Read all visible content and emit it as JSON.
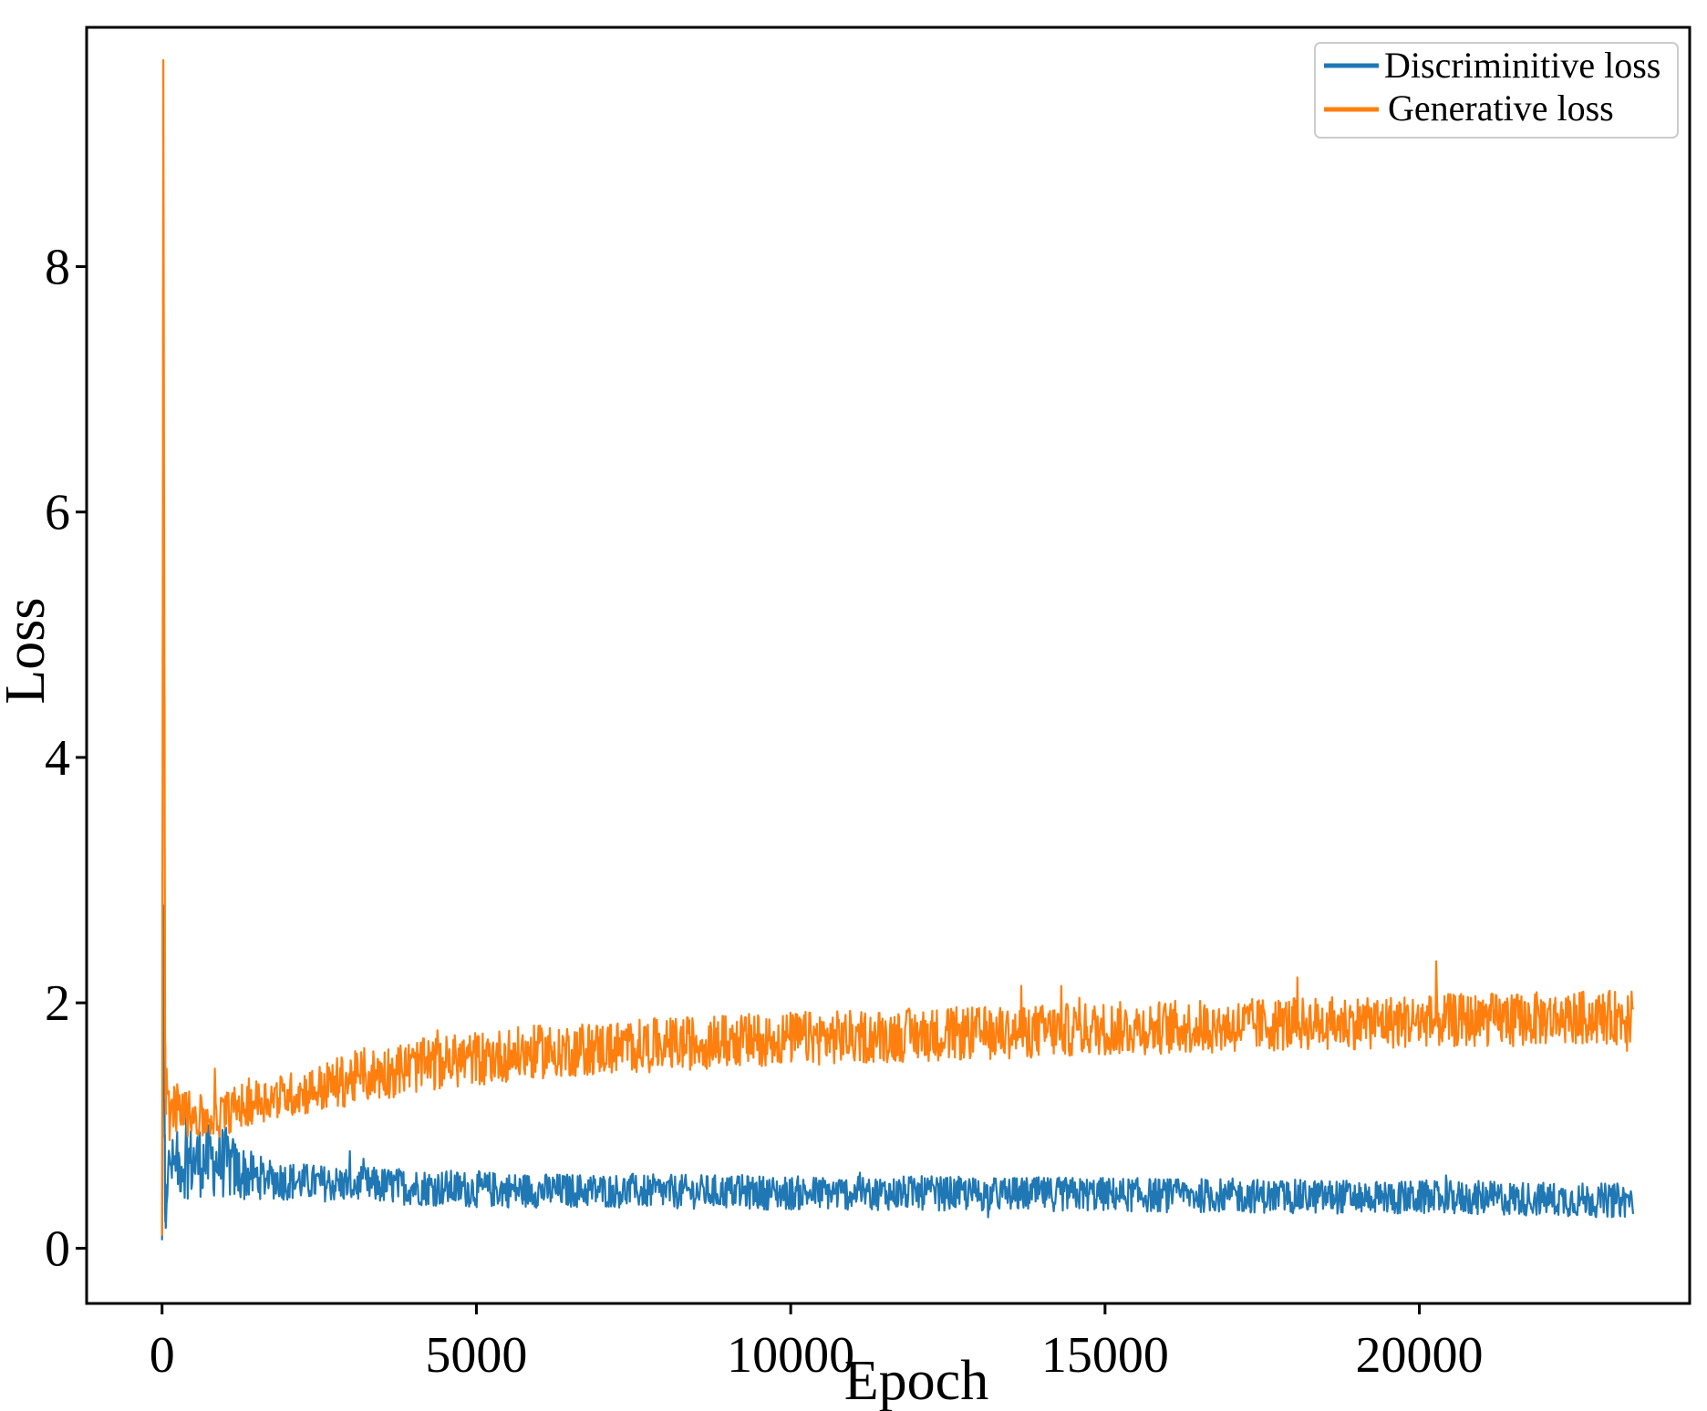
{
  "chart_data": {
    "type": "line",
    "title": "",
    "xlabel": "Epoch",
    "ylabel": "Loss",
    "xlim": [
      -1200,
      24300
    ],
    "ylim": [
      -0.45,
      9.95
    ],
    "xticks": [
      0,
      5000,
      10000,
      15000,
      20000
    ],
    "yticks": [
      0,
      2,
      4,
      6,
      8
    ],
    "xtick_labels": [
      "0",
      "5000",
      "10000",
      "15000",
      "20000"
    ],
    "ytick_labels": [
      "0",
      "2",
      "4",
      "6",
      "8"
    ],
    "grid": false,
    "legend": {
      "position": "top-right"
    },
    "series": [
      {
        "name": "Discriminitive loss",
        "color": "#1f77b4",
        "x": [
          0,
          20,
          50,
          100,
          200,
          400,
          700,
          1000,
          1200,
          1500,
          2000,
          2500,
          3000,
          4000,
          5000,
          6000,
          7000,
          8000,
          9000,
          10000,
          11000,
          12000,
          13000,
          14000,
          15000,
          16000,
          17000,
          18000,
          19000,
          20000,
          21000,
          22000,
          23000,
          23400
        ],
        "mean": [
          0.05,
          2.8,
          0.3,
          0.65,
          0.68,
          0.7,
          0.72,
          0.7,
          0.62,
          0.58,
          0.55,
          0.53,
          0.52,
          0.5,
          0.48,
          0.47,
          0.47,
          0.46,
          0.46,
          0.45,
          0.45,
          0.45,
          0.44,
          0.44,
          0.44,
          0.43,
          0.43,
          0.42,
          0.42,
          0.41,
          0.41,
          0.4,
          0.39,
          0.39
        ],
        "band": [
          0.05,
          0.1,
          0.2,
          0.2,
          0.25,
          0.3,
          0.3,
          0.3,
          0.25,
          0.18,
          0.16,
          0.15,
          0.15,
          0.15,
          0.15,
          0.14,
          0.14,
          0.14,
          0.14,
          0.14,
          0.14,
          0.14,
          0.14,
          0.14,
          0.14,
          0.14,
          0.14,
          0.14,
          0.14,
          0.14,
          0.14,
          0.14,
          0.14,
          0.14
        ]
      },
      {
        "name": "Generative loss",
        "color": "#ff7f0e",
        "x": [
          0,
          20,
          50,
          100,
          200,
          400,
          700,
          1000,
          1200,
          1500,
          2000,
          2500,
          3000,
          4000,
          5000,
          6000,
          7000,
          8000,
          9000,
          10000,
          11000,
          12000,
          13000,
          14000,
          15000,
          16000,
          17000,
          18000,
          19000,
          20000,
          21000,
          22000,
          23000,
          23400
        ],
        "mean": [
          0.1,
          9.5,
          1.4,
          1.1,
          1.15,
          1.1,
          1.05,
          1.1,
          1.15,
          1.2,
          1.25,
          1.3,
          1.38,
          1.48,
          1.55,
          1.6,
          1.63,
          1.66,
          1.69,
          1.71,
          1.72,
          1.74,
          1.75,
          1.77,
          1.79,
          1.8,
          1.81,
          1.83,
          1.84,
          1.85,
          1.86,
          1.87,
          1.88,
          1.88
        ],
        "band": [
          0.1,
          0.2,
          0.3,
          0.25,
          0.2,
          0.2,
          0.18,
          0.18,
          0.18,
          0.18,
          0.18,
          0.2,
          0.22,
          0.22,
          0.22,
          0.22,
          0.22,
          0.22,
          0.22,
          0.22,
          0.22,
          0.22,
          0.22,
          0.22,
          0.22,
          0.22,
          0.22,
          0.22,
          0.22,
          0.22,
          0.22,
          0.22,
          0.22,
          0.22
        ]
      }
    ]
  }
}
